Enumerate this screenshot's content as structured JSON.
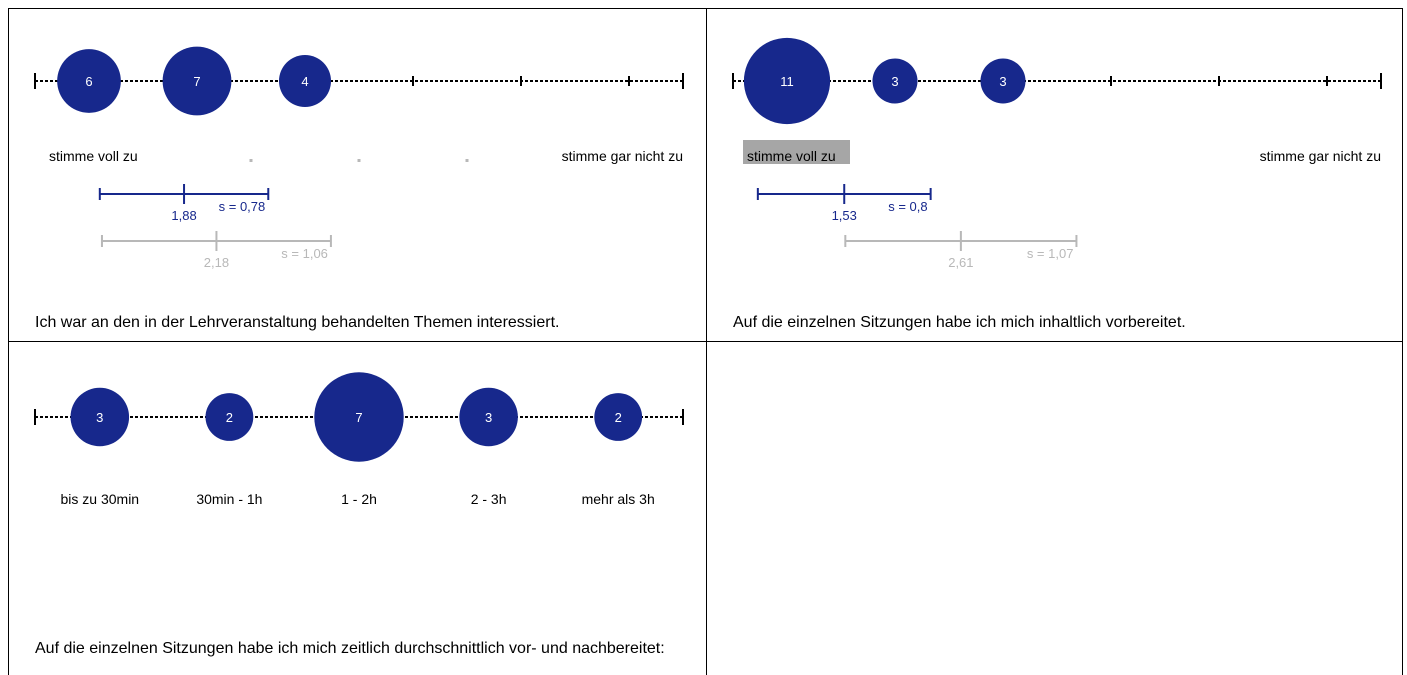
{
  "colors": {
    "bubble": "#17288c",
    "own_stats": "#17288c",
    "comparison_stats": "#b8b8b8",
    "axis": "#000000",
    "highlight": "#a6a6a6",
    "bubble_text": "#ffffff"
  },
  "chart_data": [
    {
      "type": "scatter",
      "question": "Ich war an den in der Lehrveranstaltung behandelten Themen interessiert.",
      "categories": [
        "1",
        "2",
        "3",
        "4",
        "5",
        "6"
      ],
      "counts": [
        6,
        7,
        4,
        0,
        0,
        0
      ],
      "labels": {
        "left": "stimme voll zu",
        "right": "stimme gar nicht zu"
      },
      "highlight_left": false,
      "stats": {
        "own": {
          "mean": 1.88,
          "mean_label": "1,88",
          "sd": 0.78,
          "sd_label": "s = 0,78"
        },
        "comparison": {
          "mean": 2.18,
          "mean_label": "2,18",
          "sd": 1.06,
          "sd_label": "s = 1,06"
        }
      }
    },
    {
      "type": "scatter",
      "question": "Auf die einzelnen Sitzungen habe ich mich inhaltlich vorbereitet.",
      "categories": [
        "1",
        "2",
        "3",
        "4",
        "5",
        "6"
      ],
      "counts": [
        11,
        3,
        3,
        0,
        0,
        0
      ],
      "labels": {
        "left": "stimme voll zu",
        "right": "stimme gar nicht zu"
      },
      "highlight_left": true,
      "stats": {
        "own": {
          "mean": 1.53,
          "mean_label": "1,53",
          "sd": 0.8,
          "sd_label": "s = 0,8"
        },
        "comparison": {
          "mean": 2.61,
          "mean_label": "2,61",
          "sd": 1.07,
          "sd_label": "s = 1,07"
        }
      }
    },
    {
      "type": "scatter",
      "question": "Auf die einzelnen Sitzungen habe ich mich zeitlich durchschnittlich vor- und nachbereitet:",
      "categories": [
        "bis zu 30min",
        "30min - 1h",
        "1 - 2h",
        "2 - 3h",
        "mehr als 3h"
      ],
      "counts": [
        3,
        2,
        7,
        3,
        2
      ]
    }
  ]
}
